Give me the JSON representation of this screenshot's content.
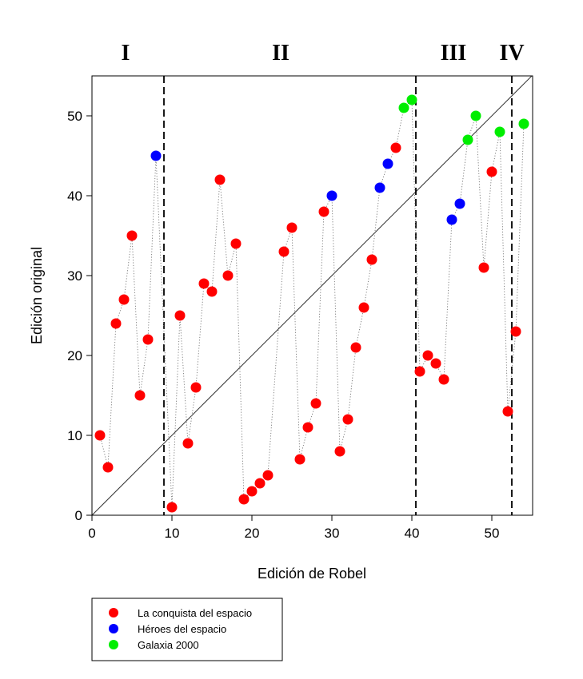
{
  "chart_data": {
    "type": "scatter",
    "xlabel": "Edición de Robel",
    "ylabel": "Edición original",
    "xlim": [
      0,
      55
    ],
    "ylim": [
      0,
      55
    ],
    "x_ticks": [
      0,
      10,
      20,
      30,
      40,
      50
    ],
    "y_ticks": [
      0,
      10,
      20,
      30,
      40,
      50
    ],
    "grid": false,
    "reference_line": "y = x",
    "sections": [
      {
        "label": "I",
        "from": 0,
        "to": 9
      },
      {
        "label": "II",
        "from": 9,
        "to": 40.5
      },
      {
        "label": "III",
        "from": 40.5,
        "to": 52.5
      },
      {
        "label": "IV",
        "from": 52.5,
        "to": 55
      }
    ],
    "dividers": [
      9,
      40.5,
      52.5
    ],
    "connector": "dotted line through all points in x order",
    "legend_position": "bottom-left",
    "series": [
      {
        "name": "La conquista del espacio",
        "color": "#ff0000",
        "points": [
          [
            1,
            10
          ],
          [
            2,
            6
          ],
          [
            3,
            24
          ],
          [
            4,
            27
          ],
          [
            5,
            35
          ],
          [
            6,
            15
          ],
          [
            7,
            22
          ],
          [
            10,
            1
          ],
          [
            11,
            25
          ],
          [
            12,
            9
          ],
          [
            13,
            16
          ],
          [
            14,
            29
          ],
          [
            15,
            28
          ],
          [
            16,
            42
          ],
          [
            17,
            30
          ],
          [
            18,
            34
          ],
          [
            19,
            2
          ],
          [
            20,
            3
          ],
          [
            21,
            4
          ],
          [
            22,
            5
          ],
          [
            24,
            33
          ],
          [
            25,
            36
          ],
          [
            26,
            7
          ],
          [
            27,
            11
          ],
          [
            28,
            14
          ],
          [
            29,
            38
          ],
          [
            31,
            8
          ],
          [
            32,
            12
          ],
          [
            33,
            21
          ],
          [
            34,
            26
          ],
          [
            35,
            32
          ],
          [
            38,
            46
          ],
          [
            41,
            18
          ],
          [
            42,
            20
          ],
          [
            43,
            19
          ],
          [
            44,
            17
          ],
          [
            49,
            31
          ],
          [
            50,
            43
          ],
          [
            52,
            13
          ],
          [
            53,
            23
          ]
        ]
      },
      {
        "name": "Héroes del espacio",
        "color": "#0000ff",
        "points": [
          [
            8,
            45
          ],
          [
            30,
            40
          ],
          [
            36,
            41
          ],
          [
            37,
            44
          ],
          [
            45,
            37
          ],
          [
            46,
            39
          ]
        ]
      },
      {
        "name": "Galaxia 2000",
        "color": "#00ee00",
        "points": [
          [
            39,
            51
          ],
          [
            40,
            52
          ],
          [
            47,
            47
          ],
          [
            48,
            50
          ],
          [
            51,
            48
          ],
          [
            54,
            49
          ]
        ]
      }
    ]
  }
}
